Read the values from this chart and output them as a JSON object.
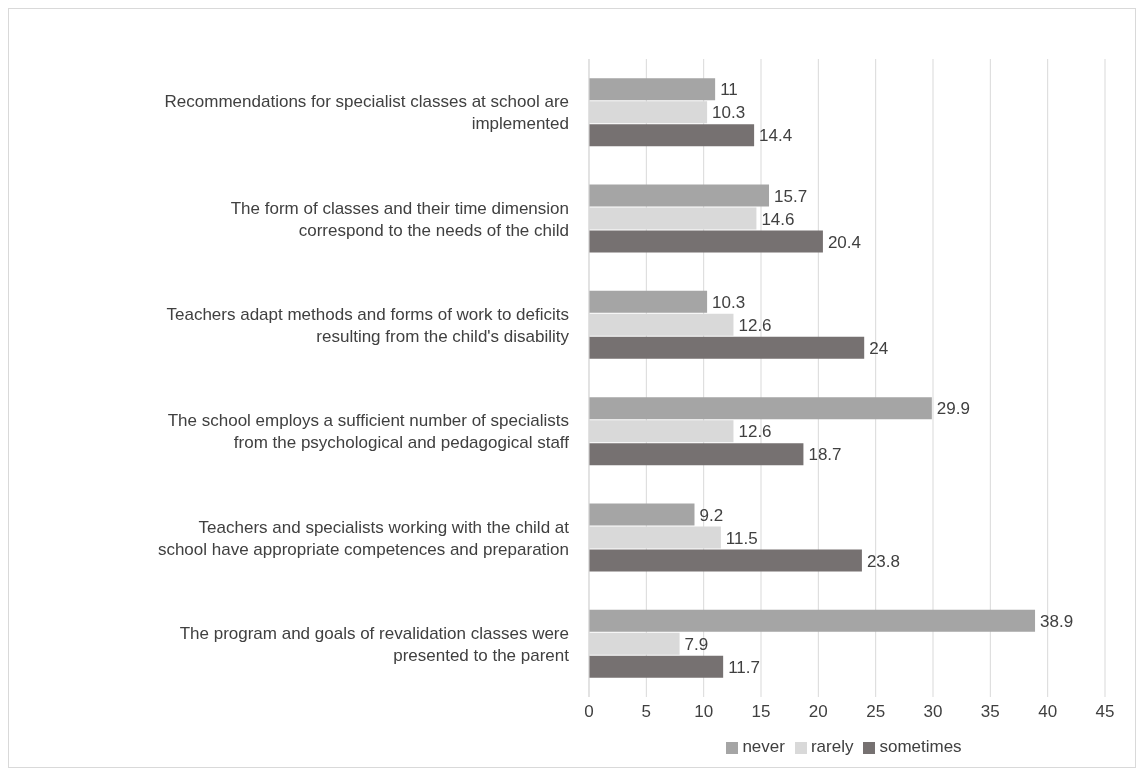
{
  "chart_data": {
    "type": "bar",
    "orientation": "horizontal",
    "categories": [
      "Recommendations for specialist classes at school are implemented",
      "The form of classes and their time dimension correspond to the needs of the child",
      "Teachers adapt methods and forms of work to deficits resulting from the child's disability",
      "The school employs a sufficient number of specialists from the psychological and pedagogical staff",
      "Teachers and specialists working with the child at school have appropriate competences and preparation",
      "The program and goals of revalidation classes were presented to the parent"
    ],
    "series": [
      {
        "name": "never",
        "color": "#a5a5a5",
        "values": [
          11,
          15.7,
          10.3,
          29.9,
          9.2,
          38.9
        ]
      },
      {
        "name": "rarely",
        "color": "#d9d9d9",
        "values": [
          10.3,
          14.6,
          12.6,
          12.6,
          11.5,
          7.9
        ]
      },
      {
        "name": "sometimes",
        "color": "#767171",
        "values": [
          14.4,
          20.4,
          24,
          18.7,
          23.8,
          11.7
        ]
      }
    ],
    "xlim": [
      0,
      45
    ],
    "xticks": [
      0,
      5,
      10,
      15,
      20,
      25,
      30,
      35,
      40,
      45
    ],
    "grid": "x",
    "legend": "bottom",
    "data_labels": true
  }
}
